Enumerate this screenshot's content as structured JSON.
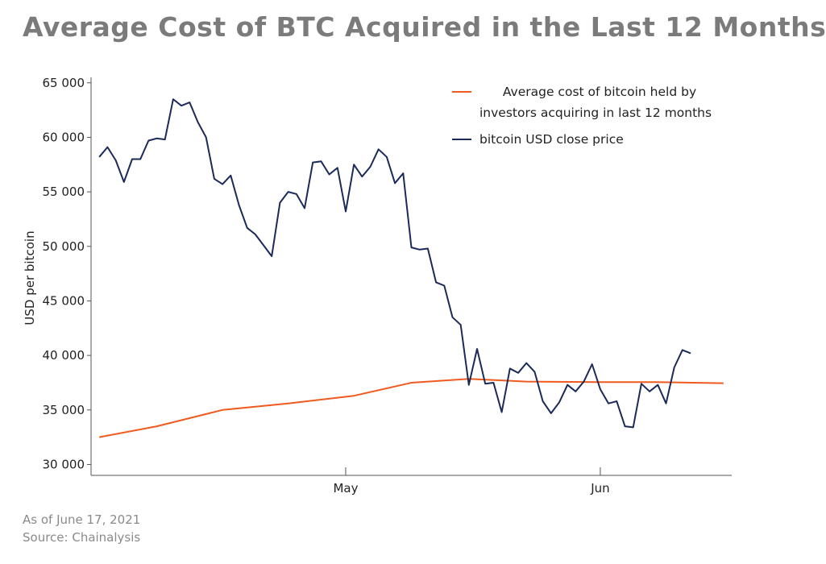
{
  "title": "Average Cost of BTC Acquired in the Last 12 Months",
  "footer": {
    "as_of": "As of June 17, 2021",
    "source": "Source: Chainalysis"
  },
  "colors": {
    "price": "#1c2a5a",
    "cost": "#f05a1e",
    "axis": "#555555"
  },
  "chart_data": {
    "type": "line",
    "title": "Average Cost of BTC Acquired in the Last 12 Months",
    "xlabel": "",
    "ylabel": "USD per bitcoin",
    "x_start": "2021-04-01",
    "x_ticks": [
      {
        "label": "May",
        "date": "2021-05-01"
      },
      {
        "label": "Jun",
        "date": "2021-06-01"
      }
    ],
    "y_ticks": [
      30000,
      35000,
      40000,
      45000,
      50000,
      55000,
      60000,
      65000
    ],
    "y_tick_labels": [
      "30 000",
      "35 000",
      "40 000",
      "45 000",
      "50 000",
      "55 000",
      "60 000",
      "65 000"
    ],
    "ylim": [
      29000,
      65500
    ],
    "xlim": [
      "2021-03-31",
      "2021-06-17"
    ],
    "grid": false,
    "legend_position": "top-right",
    "series": [
      {
        "name": "Average cost of bitcoin held by investors acquiring in last 12 months",
        "legend_lines": [
          "Average cost of bitcoin held by",
          "investors acquiring in last 12 months"
        ],
        "color": "#f05a1e",
        "points": [
          [
            "2021-04-01",
            32500
          ],
          [
            "2021-04-08",
            33500
          ],
          [
            "2021-04-16",
            35000
          ],
          [
            "2021-04-24",
            35600
          ],
          [
            "2021-05-02",
            36300
          ],
          [
            "2021-05-09",
            37500
          ],
          [
            "2021-05-16",
            37850
          ],
          [
            "2021-05-23",
            37600
          ],
          [
            "2021-06-01",
            37550
          ],
          [
            "2021-06-08",
            37550
          ],
          [
            "2021-06-16",
            37450
          ]
        ]
      },
      {
        "name": "bitcoin USD close price",
        "legend_lines": [
          "bitcoin USD close price"
        ],
        "color": "#1c2a5a",
        "points": [
          [
            "2021-04-01",
            58200
          ],
          [
            "2021-04-02",
            59100
          ],
          [
            "2021-04-03",
            57900
          ],
          [
            "2021-04-04",
            55900
          ],
          [
            "2021-04-05",
            58000
          ],
          [
            "2021-04-06",
            58000
          ],
          [
            "2021-04-07",
            59700
          ],
          [
            "2021-04-08",
            59900
          ],
          [
            "2021-04-09",
            59800
          ],
          [
            "2021-04-10",
            63500
          ],
          [
            "2021-04-11",
            62900
          ],
          [
            "2021-04-12",
            63200
          ],
          [
            "2021-04-13",
            61400
          ],
          [
            "2021-04-14",
            60000
          ],
          [
            "2021-04-15",
            56200
          ],
          [
            "2021-04-16",
            55700
          ],
          [
            "2021-04-17",
            56500
          ],
          [
            "2021-04-18",
            53800
          ],
          [
            "2021-04-19",
            51700
          ],
          [
            "2021-04-20",
            51100
          ],
          [
            "2021-04-21",
            50100
          ],
          [
            "2021-04-22",
            49100
          ],
          [
            "2021-04-23",
            54000
          ],
          [
            "2021-04-24",
            55000
          ],
          [
            "2021-04-25",
            54800
          ],
          [
            "2021-04-26",
            53500
          ],
          [
            "2021-04-27",
            57700
          ],
          [
            "2021-04-28",
            57800
          ],
          [
            "2021-04-29",
            56600
          ],
          [
            "2021-04-30",
            57200
          ],
          [
            "2021-05-01",
            53200
          ],
          [
            "2021-05-02",
            57500
          ],
          [
            "2021-05-03",
            56400
          ],
          [
            "2021-05-04",
            57300
          ],
          [
            "2021-05-05",
            58900
          ],
          [
            "2021-05-06",
            58200
          ],
          [
            "2021-05-07",
            55800
          ],
          [
            "2021-05-08",
            56700
          ],
          [
            "2021-05-09",
            49900
          ],
          [
            "2021-05-10",
            49700
          ],
          [
            "2021-05-11",
            49800
          ],
          [
            "2021-05-12",
            46700
          ],
          [
            "2021-05-13",
            46400
          ],
          [
            "2021-05-14",
            43500
          ],
          [
            "2021-05-15",
            42800
          ],
          [
            "2021-05-16",
            37300
          ],
          [
            "2021-05-17",
            40600
          ],
          [
            "2021-05-18",
            37400
          ],
          [
            "2021-05-19",
            37500
          ],
          [
            "2021-05-20",
            34800
          ],
          [
            "2021-05-21",
            38800
          ],
          [
            "2021-05-22",
            38400
          ],
          [
            "2021-05-23",
            39300
          ],
          [
            "2021-05-24",
            38500
          ],
          [
            "2021-05-25",
            35800
          ],
          [
            "2021-05-26",
            34700
          ],
          [
            "2021-05-27",
            35700
          ],
          [
            "2021-05-28",
            37300
          ],
          [
            "2021-05-29",
            36700
          ],
          [
            "2021-05-30",
            37600
          ],
          [
            "2021-05-31",
            39200
          ],
          [
            "2021-06-01",
            36900
          ],
          [
            "2021-06-02",
            35600
          ],
          [
            "2021-06-03",
            35800
          ],
          [
            "2021-06-04",
            33500
          ],
          [
            "2021-06-05",
            33400
          ],
          [
            "2021-06-06",
            37400
          ],
          [
            "2021-06-07",
            36700
          ],
          [
            "2021-06-08",
            37300
          ],
          [
            "2021-06-09",
            35600
          ],
          [
            "2021-06-10",
            38900
          ],
          [
            "2021-06-11",
            40500
          ],
          [
            "2021-06-12",
            40200
          ]
        ]
      }
    ]
  }
}
